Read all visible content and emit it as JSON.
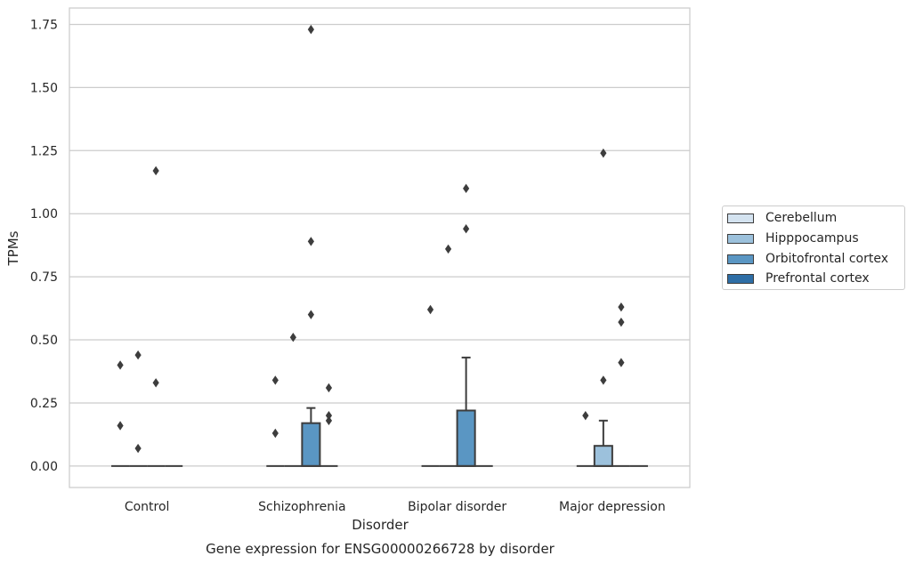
{
  "chart_data": {
    "type": "box",
    "title": "Gene expression for ENSG00000266728 by disorder",
    "xlabel": "Disorder",
    "ylabel": "TPMs",
    "categories": [
      "Control",
      "Schizophrenia",
      "Bipolar disorder",
      "Major depression"
    ],
    "ylim": [
      -0.085,
      1.815
    ],
    "yticks": [
      0.0,
      0.25,
      0.5,
      0.75,
      1.0,
      1.25,
      1.5,
      1.75
    ],
    "ytick_labels": [
      "0.00",
      "0.25",
      "0.50",
      "0.75",
      "1.00",
      "1.25",
      "1.50",
      "1.75"
    ],
    "grid": "horizontal",
    "legend_position": "right",
    "series": [
      {
        "name": "Cerebellum",
        "color": "#d4e3f0",
        "boxes": [
          {
            "q1": 0,
            "median": 0,
            "q3": 0,
            "whisker_low": 0,
            "whisker_high": 0,
            "outliers": [
              0.16,
              0.4
            ]
          },
          {
            "q1": 0,
            "median": 0,
            "q3": 0,
            "whisker_low": 0,
            "whisker_high": 0,
            "outliers": [
              0.13,
              0.34
            ]
          },
          {
            "q1": 0,
            "median": 0,
            "q3": 0,
            "whisker_low": 0,
            "whisker_high": 0,
            "outliers": [
              0.62
            ]
          },
          {
            "q1": 0,
            "median": 0,
            "q3": 0,
            "whisker_low": 0,
            "whisker_high": 0,
            "outliers": [
              0.2
            ]
          }
        ]
      },
      {
        "name": "Hipppocampus",
        "color": "#9cc1dc",
        "boxes": [
          {
            "q1": 0,
            "median": 0,
            "q3": 0,
            "whisker_low": 0,
            "whisker_high": 0,
            "outliers": [
              0.07,
              0.44
            ]
          },
          {
            "q1": 0,
            "median": 0,
            "q3": 0,
            "whisker_low": 0,
            "whisker_high": 0,
            "outliers": [
              0.51
            ]
          },
          {
            "q1": 0,
            "median": 0,
            "q3": 0,
            "whisker_low": 0,
            "whisker_high": 0,
            "outliers": [
              0.86
            ]
          },
          {
            "q1": 0,
            "median": 0,
            "q3": 0.08,
            "whisker_low": 0,
            "whisker_high": 0.18,
            "outliers": [
              0.34,
              1.24
            ]
          }
        ]
      },
      {
        "name": "Orbitofrontal cortex",
        "color": "#5a96c3",
        "boxes": [
          {
            "q1": 0,
            "median": 0,
            "q3": 0,
            "whisker_low": 0,
            "whisker_high": 0,
            "outliers": [
              0.33,
              1.17
            ]
          },
          {
            "q1": 0,
            "median": 0,
            "q3": 0.17,
            "whisker_low": 0,
            "whisker_high": 0.23,
            "outliers": [
              0.6,
              0.89,
              1.73
            ]
          },
          {
            "q1": 0,
            "median": 0,
            "q3": 0.22,
            "whisker_low": 0,
            "whisker_high": 0.43,
            "outliers": [
              0.94,
              1.1
            ]
          },
          {
            "q1": 0,
            "median": 0,
            "q3": 0,
            "whisker_low": 0,
            "whisker_high": 0,
            "outliers": [
              0.41,
              0.57,
              0.63
            ]
          }
        ]
      },
      {
        "name": "Prefrontal cortex",
        "color": "#2e6ea6",
        "boxes": [
          {
            "q1": 0,
            "median": 0,
            "q3": 0,
            "whisker_low": 0,
            "whisker_high": 0,
            "outliers": []
          },
          {
            "q1": 0,
            "median": 0,
            "q3": 0,
            "whisker_low": 0,
            "whisker_high": 0,
            "outliers": [
              0.18,
              0.2,
              0.31
            ]
          },
          {
            "q1": 0,
            "median": 0,
            "q3": 0,
            "whisker_low": 0,
            "whisker_high": 0,
            "outliers": []
          },
          {
            "q1": 0,
            "median": 0,
            "q3": 0,
            "whisker_low": 0,
            "whisker_high": 0,
            "outliers": []
          }
        ]
      }
    ]
  }
}
